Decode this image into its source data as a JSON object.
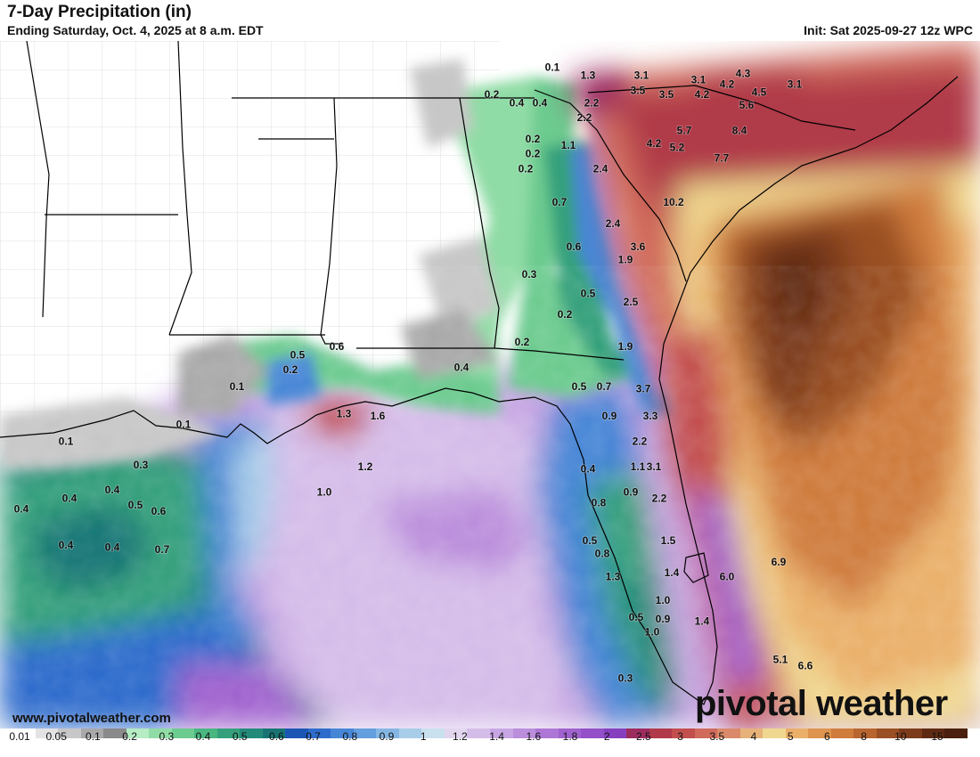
{
  "header": {
    "title": "7-Day Precipitation (in)",
    "subtitle": "Ending Saturday, Oct. 4, 2025 at 8 a.m. EDT",
    "init": "Init: Sat 2025-09-27 12z WPC"
  },
  "footer": {
    "credit": "www.pivotalweather.com",
    "brand": "pivotal weather"
  },
  "legend": {
    "labels": [
      "0.01",
      "0.05",
      "0.1",
      "0.2",
      "0.3",
      "0.4",
      "0.5",
      "0.6",
      "0.7",
      "0.8",
      "0.9",
      "1",
      "1.2",
      "1.4",
      "1.6",
      "1.8",
      "2",
      "2.5",
      "3",
      "3.5",
      "4",
      "5",
      "6",
      "8",
      "10",
      "15"
    ],
    "colors": [
      "#ffffff",
      "#e3e3e3",
      "#c7c7c7",
      "#a9a9a9",
      "#8a8a8a",
      "#b5ecc4",
      "#90dca6",
      "#6ccb8f",
      "#4ab680",
      "#36a07c",
      "#238a7a",
      "#187474",
      "#1c56b4",
      "#2e6ccc",
      "#4686d6",
      "#639ede",
      "#85b6e4",
      "#a8cde9",
      "#c9e0ee",
      "#e2d6ef",
      "#d5bde9",
      "#c8a6e3",
      "#bb8edc",
      "#ae77d6",
      "#a062cf",
      "#9350c8",
      "#8640bf",
      "#9c2b5e",
      "#b03a4a",
      "#c24e4e",
      "#d06a5c",
      "#da8a6a",
      "#e6b27a",
      "#f0d790",
      "#eab06a",
      "#df944f",
      "#cf7c3c",
      "#b8652f",
      "#9a4f24",
      "#7c3b1a",
      "#5e2a12",
      "#4a1f0d"
    ]
  },
  "map_values": [
    {
      "v": "0.1",
      "lon": -84.7,
      "lat": 34.8
    },
    {
      "v": "1.3",
      "lon": -83.7,
      "lat": 34.6
    },
    {
      "v": "3.1",
      "lon": -82.2,
      "lat": 34.6
    },
    {
      "v": "3.1",
      "lon": -80.6,
      "lat": 34.5
    },
    {
      "v": "4.3",
      "lon": -79.35,
      "lat": 34.65
    },
    {
      "v": "4.2",
      "lon": -79.8,
      "lat": 34.4
    },
    {
      "v": "3.1",
      "lon": -77.9,
      "lat": 34.4
    },
    {
      "v": "3.5",
      "lon": -82.3,
      "lat": 34.25
    },
    {
      "v": "3.5",
      "lon": -81.5,
      "lat": 34.15
    },
    {
      "v": "4.2",
      "lon": -80.5,
      "lat": 34.15
    },
    {
      "v": "4.5",
      "lon": -78.9,
      "lat": 34.2
    },
    {
      "v": "0.2",
      "lon": -86.4,
      "lat": 34.15
    },
    {
      "v": "0.4",
      "lon": -85.7,
      "lat": 33.95
    },
    {
      "v": "0.4",
      "lon": -85.05,
      "lat": 33.95
    },
    {
      "v": "2.2",
      "lon": -83.6,
      "lat": 33.95
    },
    {
      "v": "5.6",
      "lon": -79.25,
      "lat": 33.9
    },
    {
      "v": "2.2",
      "lon": -83.8,
      "lat": 33.6
    },
    {
      "v": "8.4",
      "lon": -79.45,
      "lat": 33.3
    },
    {
      "v": "5.7",
      "lon": -81.0,
      "lat": 33.3
    },
    {
      "v": "0.2",
      "lon": -85.25,
      "lat": 33.1
    },
    {
      "v": "1.1",
      "lon": -84.25,
      "lat": 32.95
    },
    {
      "v": "4.2",
      "lon": -81.85,
      "lat": 33.0
    },
    {
      "v": "5.2",
      "lon": -81.2,
      "lat": 32.9
    },
    {
      "v": "0.2",
      "lon": -85.25,
      "lat": 32.75
    },
    {
      "v": "7.7",
      "lon": -79.95,
      "lat": 32.65
    },
    {
      "v": "0.2",
      "lon": -85.45,
      "lat": 32.4
    },
    {
      "v": "2.4",
      "lon": -83.35,
      "lat": 32.4
    },
    {
      "v": "0.7",
      "lon": -84.5,
      "lat": 31.6
    },
    {
      "v": "10.2",
      "lon": -81.3,
      "lat": 31.6
    },
    {
      "v": "2.4",
      "lon": -83.0,
      "lat": 31.1
    },
    {
      "v": "3.6",
      "lon": -82.3,
      "lat": 30.55
    },
    {
      "v": "0.6",
      "lon": -84.1,
      "lat": 30.55
    },
    {
      "v": "1.9",
      "lon": -82.65,
      "lat": 30.25
    },
    {
      "v": "0.3",
      "lon": -85.35,
      "lat": 29.9
    },
    {
      "v": "0.5",
      "lon": -83.7,
      "lat": 29.45
    },
    {
      "v": "2.5",
      "lon": -82.5,
      "lat": 29.25
    },
    {
      "v": "0.2",
      "lon": -84.35,
      "lat": 28.95
    },
    {
      "v": "0.2",
      "lon": -85.55,
      "lat": 28.3
    },
    {
      "v": "1.9",
      "lon": -82.65,
      "lat": 28.2
    },
    {
      "v": "0.6",
      "lon": -90.75,
      "lat": 28.2
    },
    {
      "v": "0.5",
      "lon": -91.85,
      "lat": 28.0
    },
    {
      "v": "0.4",
      "lon": -87.25,
      "lat": 27.7
    },
    {
      "v": "0.2",
      "lon": -92.05,
      "lat": 27.65
    },
    {
      "v": "0.1",
      "lon": -93.55,
      "lat": 27.25
    },
    {
      "v": "0.5",
      "lon": -83.95,
      "lat": 27.25
    },
    {
      "v": "0.7",
      "lon": -83.25,
      "lat": 27.25
    },
    {
      "v": "3.7",
      "lon": -82.15,
      "lat": 27.2
    },
    {
      "v": "1.3",
      "lon": -90.55,
      "lat": 26.6
    },
    {
      "v": "1.6",
      "lon": -89.6,
      "lat": 26.55
    },
    {
      "v": "0.9",
      "lon": -83.1,
      "lat": 26.55
    },
    {
      "v": "3.3",
      "lon": -81.95,
      "lat": 26.55
    },
    {
      "v": "0.1",
      "lon": -95.05,
      "lat": 26.35
    },
    {
      "v": "0.1",
      "lon": -98.35,
      "lat": 25.95
    },
    {
      "v": "2.2",
      "lon": -82.25,
      "lat": 25.95
    },
    {
      "v": "0.3",
      "lon": -96.25,
      "lat": 25.4
    },
    {
      "v": "1.2",
      "lon": -89.95,
      "lat": 25.35
    },
    {
      "v": "1.1",
      "lon": -82.3,
      "lat": 25.35
    },
    {
      "v": "3.1",
      "lon": -81.85,
      "lat": 25.35
    },
    {
      "v": "0.4",
      "lon": -83.7,
      "lat": 25.3
    },
    {
      "v": "0.4",
      "lon": -97.05,
      "lat": 24.8
    },
    {
      "v": "1.0",
      "lon": -91.1,
      "lat": 24.75
    },
    {
      "v": "0.9",
      "lon": -82.5,
      "lat": 24.75
    },
    {
      "v": "0.4",
      "lon": -98.25,
      "lat": 24.6
    },
    {
      "v": "2.2",
      "lon": -81.7,
      "lat": 24.6
    },
    {
      "v": "0.8",
      "lon": -83.4,
      "lat": 24.5
    },
    {
      "v": "0.5",
      "lon": -96.4,
      "lat": 24.45
    },
    {
      "v": "0.4",
      "lon": -99.6,
      "lat": 24.35
    },
    {
      "v": "0.6",
      "lon": -95.75,
      "lat": 24.3
    },
    {
      "v": "0.5",
      "lon": -83.65,
      "lat": 23.6
    },
    {
      "v": "1.5",
      "lon": -81.45,
      "lat": 23.6
    },
    {
      "v": "0.4",
      "lon": -98.35,
      "lat": 23.5
    },
    {
      "v": "0.4",
      "lon": -97.05,
      "lat": 23.45
    },
    {
      "v": "0.8",
      "lon": -83.3,
      "lat": 23.3
    },
    {
      "v": "0.7",
      "lon": -95.65,
      "lat": 23.4
    },
    {
      "v": "1.4",
      "lon": -81.35,
      "lat": 22.85
    },
    {
      "v": "6.9",
      "lon": -78.35,
      "lat": 23.1
    },
    {
      "v": "1.3",
      "lon": -83.0,
      "lat": 22.75
    },
    {
      "v": "6.0",
      "lon": -79.8,
      "lat": 22.75
    },
    {
      "v": "1.0",
      "lon": -81.6,
      "lat": 22.2
    },
    {
      "v": "0.5",
      "lon": -82.35,
      "lat": 21.8
    },
    {
      "v": "0.9",
      "lon": -81.6,
      "lat": 21.75
    },
    {
      "v": "1.4",
      "lon": -80.5,
      "lat": 21.7
    },
    {
      "v": "1.0",
      "lon": -81.9,
      "lat": 21.45
    },
    {
      "v": "5.1",
      "lon": -78.3,
      "lat": 20.8
    },
    {
      "v": "6.6",
      "lon": -77.6,
      "lat": 20.65
    },
    {
      "v": "0.3",
      "lon": -82.65,
      "lat": 20.35
    }
  ]
}
